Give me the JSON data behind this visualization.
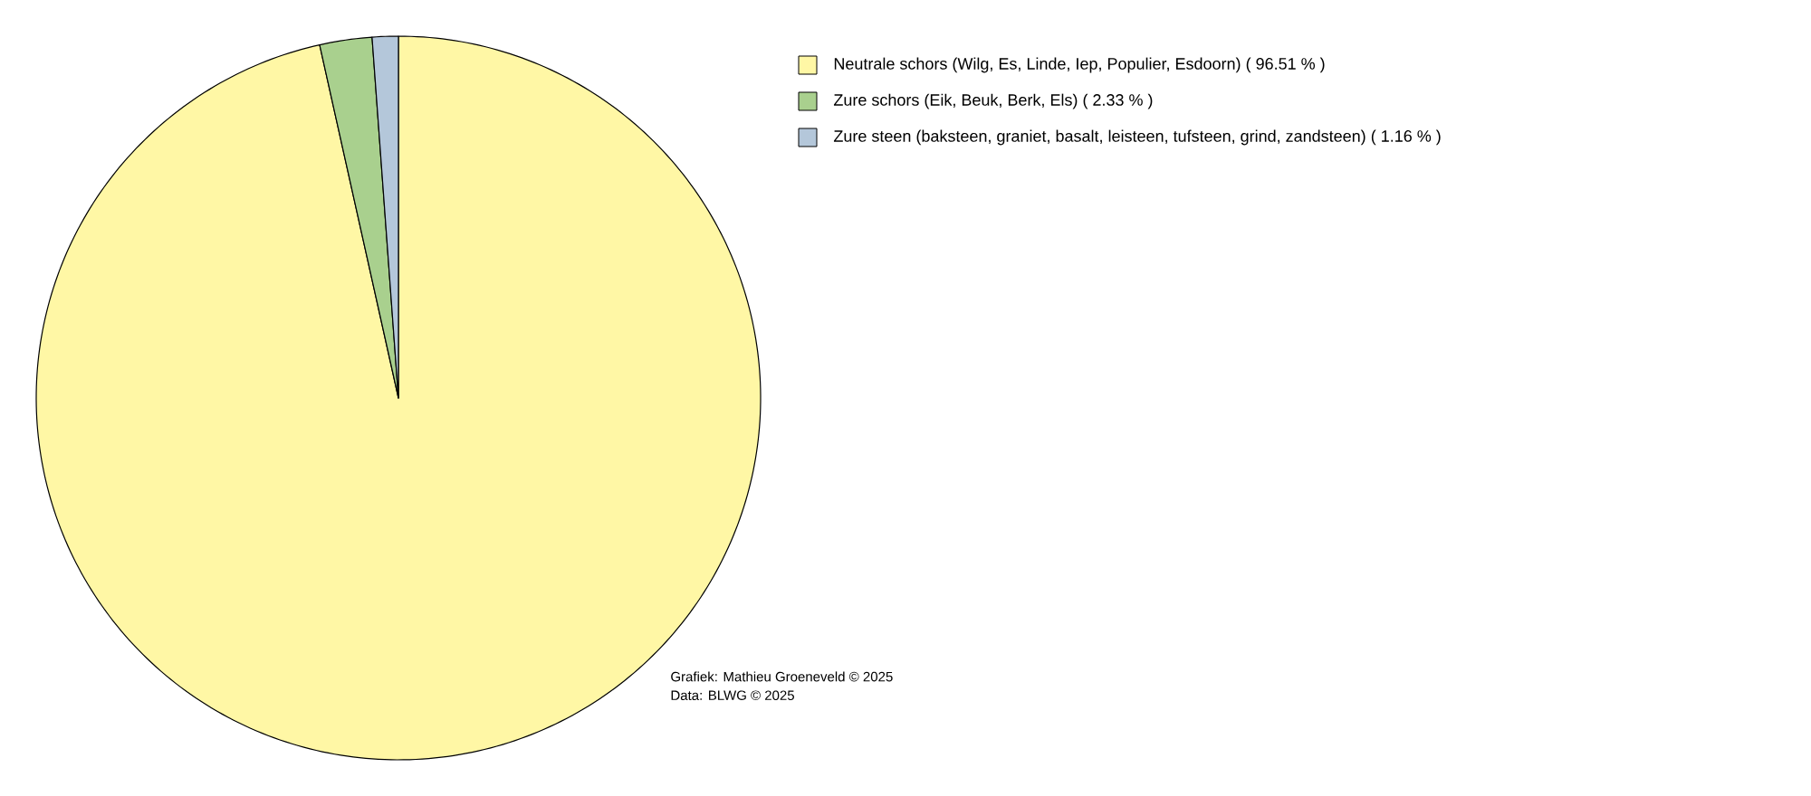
{
  "chart_data": {
    "type": "pie",
    "categories": [
      "Neutrale schors (Wilg, Es, Linde, Iep, Populier, Esdoorn)",
      "Zure schors (Eik, Beuk, Berk, Els)",
      "Zure steen (baksteen, graniet, basalt, leisteen, tufsteen, grind, zandsteen)"
    ],
    "values": [
      96.51,
      2.33,
      1.16
    ],
    "value_labels": [
      "( 96.51 % )",
      "( 2.33 % )",
      "( 1.16 % )"
    ],
    "colors": [
      "#fff7a5",
      "#a9d08e",
      "#b4c7da"
    ],
    "legend": "top right",
    "annotations": [
      "Grafiek: Mathieu Groeneveld © 2025",
      "Data: BLWG © 2025"
    ]
  }
}
